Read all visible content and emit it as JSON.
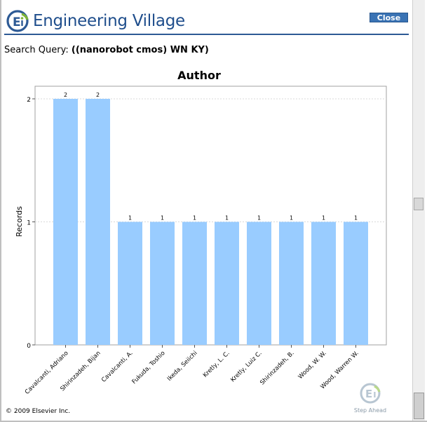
{
  "header": {
    "brand_name": "Engineering Village",
    "close_label": "Close"
  },
  "query": {
    "label": "Search Query:",
    "value": "((nanorobot cmos) WN KY)"
  },
  "footer": {
    "copyright": "© 2009 Elsevier Inc.",
    "tagline": "Step Ahead"
  },
  "colors": {
    "brand_blue": "#1f4e8c",
    "bar_fill": "#99ccff",
    "button_blue": "#3a73b4"
  },
  "chart_data": {
    "type": "bar",
    "title": "Author",
    "ylabel": "Records",
    "xlabel": "",
    "ylim": [
      0,
      2
    ],
    "yticks": [
      0,
      1,
      2
    ],
    "categories": [
      "Cavalcanti, Adriano",
      "Shirinzadeh, Bijan",
      "Cavalcanti, A.",
      "Fukuda, Toshio",
      "Ikeda, Seiichi",
      "Kretly, L. C.",
      "Kretly, Luiz C.",
      "Shirinzadeh, B.",
      "Wood, W. W.",
      "Wood, Warren W."
    ],
    "values": [
      2,
      2,
      1,
      1,
      1,
      1,
      1,
      1,
      1,
      1
    ],
    "grid": true
  }
}
